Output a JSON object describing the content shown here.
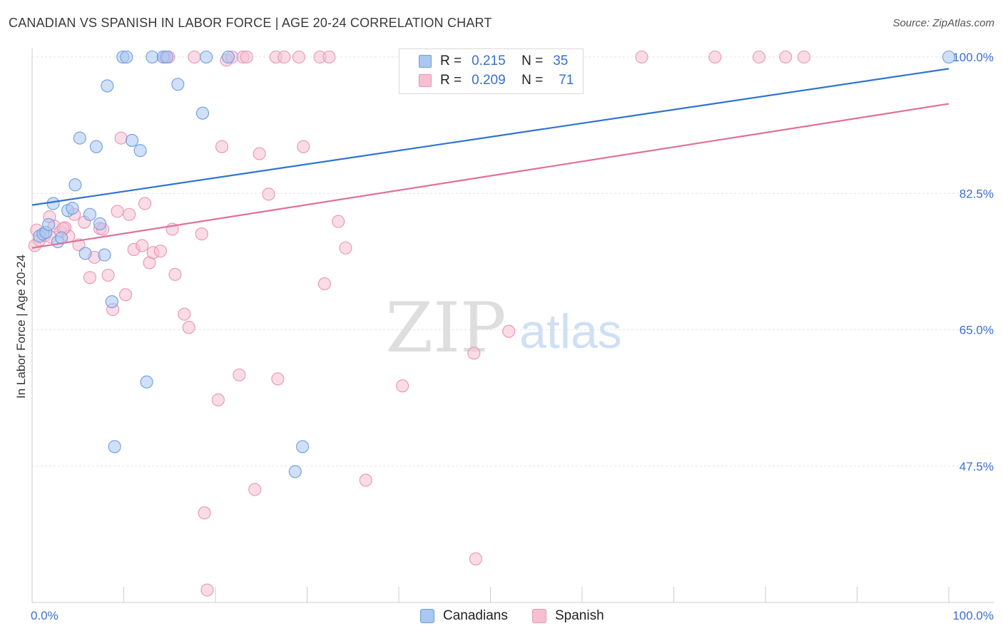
{
  "title": "CANADIAN VS SPANISH IN LABOR FORCE | AGE 20-24 CORRELATION CHART",
  "source": "Source: ZipAtlas.com",
  "watermark": {
    "zip": "ZIP",
    "atlas": "atlas"
  },
  "legend": {
    "rows": [
      {
        "r_label": "R =",
        "r_value": "0.215",
        "n_label": "N =",
        "n_value": "35"
      },
      {
        "r_label": "R =",
        "r_value": "0.209",
        "n_label": "N =",
        "n_value": "71"
      }
    ]
  },
  "bottom_legend": {
    "canadians": "Canadians",
    "spanish": "Spanish"
  },
  "colors": {
    "canadians_fill": "#a9c7f0",
    "canadians_stroke": "#6d9ee0",
    "canadians_line": "#2f74d0",
    "spanish_fill": "#f6bfd2",
    "spanish_stroke": "#e895b4",
    "spanish_line": "#e0709a",
    "tick_label": "#3a6fd0",
    "grid": "#e3e3e3"
  },
  "chart_data": {
    "type": "scatter",
    "title": "CANADIAN VS SPANISH IN LABOR FORCE | AGE 20-24 CORRELATION CHART",
    "xlabel": "",
    "ylabel": "In Labor Force | Age 20-24",
    "xlim": [
      0,
      100
    ],
    "ylim": [
      30,
      100
    ],
    "x_tick_labels": [
      "0.0%",
      "100.0%"
    ],
    "y_ticks": [
      47.5,
      65.0,
      82.5,
      100.0
    ],
    "y_tick_labels": [
      "47.5%",
      "65.0%",
      "82.5%",
      "100.0%"
    ],
    "grid": true,
    "series": [
      {
        "name": "Canadians",
        "r": 0.215,
        "n": 35,
        "trend": {
          "x": [
            0,
            100
          ],
          "y": [
            81.0,
            98.5
          ]
        },
        "points": [
          [
            0.8,
            77.0
          ],
          [
            1.2,
            77.3
          ],
          [
            1.5,
            77.5
          ],
          [
            1.8,
            78.5
          ],
          [
            2.3,
            81.2
          ],
          [
            2.8,
            76.3
          ],
          [
            3.2,
            76.8
          ],
          [
            3.9,
            80.3
          ],
          [
            4.4,
            80.6
          ],
          [
            4.7,
            83.6
          ],
          [
            5.2,
            89.6
          ],
          [
            5.8,
            74.8
          ],
          [
            6.3,
            79.8
          ],
          [
            7.0,
            88.5
          ],
          [
            7.4,
            78.6
          ],
          [
            7.9,
            74.6
          ],
          [
            8.2,
            96.3
          ],
          [
            8.7,
            68.6
          ],
          [
            9.0,
            50.0
          ],
          [
            9.9,
            100
          ],
          [
            10.3,
            100
          ],
          [
            10.9,
            89.3
          ],
          [
            11.8,
            88.0
          ],
          [
            12.5,
            58.3
          ],
          [
            13.1,
            100
          ],
          [
            14.3,
            100
          ],
          [
            14.7,
            100
          ],
          [
            15.9,
            96.5
          ],
          [
            18.6,
            92.8
          ],
          [
            19.0,
            100
          ],
          [
            21.4,
            100
          ],
          [
            28.7,
            46.8
          ],
          [
            29.5,
            50.0
          ],
          [
            55.8,
            100
          ],
          [
            100,
            100
          ]
        ]
      },
      {
        "name": "Spanish",
        "r": 0.209,
        "n": 71,
        "trend": {
          "x": [
            0,
            100
          ],
          "y": [
            75.5,
            94.0
          ]
        },
        "points": [
          [
            0.3,
            75.8
          ],
          [
            0.8,
            76.5
          ],
          [
            1.4,
            77.1
          ],
          [
            1.9,
            79.5
          ],
          [
            2.4,
            78.3
          ],
          [
            3.1,
            77.6
          ],
          [
            3.6,
            78.1
          ],
          [
            4.0,
            77.0
          ],
          [
            4.6,
            79.8
          ],
          [
            5.1,
            75.9
          ],
          [
            5.7,
            78.8
          ],
          [
            6.3,
            71.7
          ],
          [
            6.8,
            74.3
          ],
          [
            7.4,
            78.0
          ],
          [
            7.7,
            77.9
          ],
          [
            8.3,
            72.0
          ],
          [
            8.8,
            67.6
          ],
          [
            9.3,
            80.2
          ],
          [
            9.7,
            89.6
          ],
          [
            10.2,
            69.5
          ],
          [
            10.6,
            79.8
          ],
          [
            11.1,
            75.3
          ],
          [
            12.0,
            75.8
          ],
          [
            12.3,
            81.2
          ],
          [
            12.8,
            73.6
          ],
          [
            13.2,
            74.9
          ],
          [
            14.0,
            75.1
          ],
          [
            14.5,
            100
          ],
          [
            14.9,
            100
          ],
          [
            15.3,
            77.9
          ],
          [
            15.6,
            72.1
          ],
          [
            16.6,
            67.0
          ],
          [
            17.1,
            65.3
          ],
          [
            17.7,
            100
          ],
          [
            18.5,
            77.3
          ],
          [
            18.8,
            41.5
          ],
          [
            19.1,
            31.6
          ],
          [
            20.3,
            56.0
          ],
          [
            20.7,
            88.5
          ],
          [
            21.2,
            99.6
          ],
          [
            21.8,
            100
          ],
          [
            22.6,
            59.2
          ],
          [
            23.0,
            100
          ],
          [
            23.4,
            100
          ],
          [
            24.3,
            44.5
          ],
          [
            24.8,
            87.6
          ],
          [
            25.8,
            82.4
          ],
          [
            26.6,
            100
          ],
          [
            26.8,
            58.7
          ],
          [
            27.5,
            100
          ],
          [
            29.1,
            100
          ],
          [
            29.6,
            88.5
          ],
          [
            31.4,
            100
          ],
          [
            31.9,
            70.9
          ],
          [
            32.4,
            100
          ],
          [
            33.4,
            78.9
          ],
          [
            34.2,
            75.5
          ],
          [
            36.4,
            45.7
          ],
          [
            40.4,
            57.8
          ],
          [
            47.5,
            100
          ],
          [
            48.2,
            62.0
          ],
          [
            48.4,
            35.6
          ],
          [
            52.0,
            64.8
          ],
          [
            66.5,
            100
          ],
          [
            74.5,
            100
          ],
          [
            79.3,
            100
          ],
          [
            82.2,
            100
          ],
          [
            84.2,
            100
          ],
          [
            0.5,
            77.8
          ],
          [
            2.0,
            76.9
          ],
          [
            3.4,
            78.0
          ]
        ]
      }
    ]
  }
}
